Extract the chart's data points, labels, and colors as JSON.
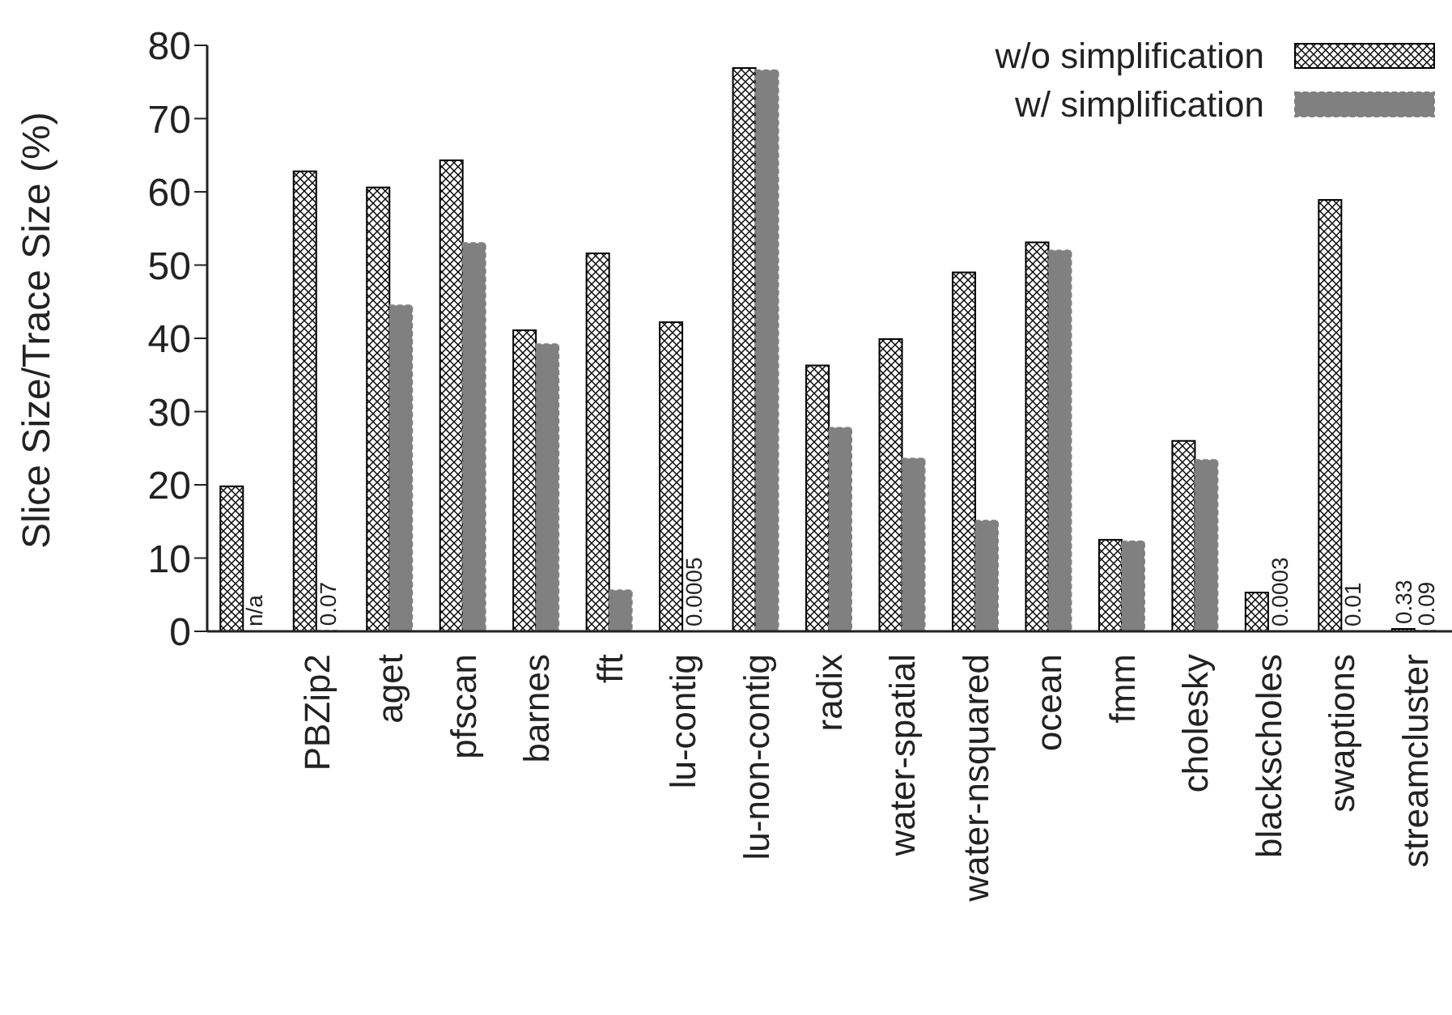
{
  "chart_data": {
    "type": "bar",
    "ylabel": "Slice Size/Trace Size (%)",
    "categories": [
      null,
      "PBZip2",
      "aget",
      "pfscan",
      "barnes",
      "fft",
      "lu-contig",
      "lu-non-contig",
      "radix",
      "water-spatial",
      "water-nsquared",
      "ocean",
      "fmm",
      "cholesky",
      "blackscholes",
      "swaptions",
      "streamcluster"
    ],
    "series": [
      {
        "name": "w/o simplification",
        "color": "#000000",
        "values": [
          19.8,
          62.8,
          60.6,
          64.3,
          41.1,
          51.6,
          42.2,
          76.9,
          36.3,
          39.9,
          49.0,
          53.1,
          12.5,
          26.0,
          5.3,
          58.9,
          0.33
        ],
        "value_labels": [
          null,
          null,
          null,
          null,
          null,
          null,
          null,
          null,
          null,
          null,
          null,
          null,
          null,
          null,
          null,
          null,
          "0.33"
        ]
      },
      {
        "name": "w/ simplification",
        "color": "#808080",
        "values": [
          null,
          0.07,
          44.5,
          53.0,
          39.2,
          5.6,
          0.0005,
          76.6,
          27.8,
          23.6,
          15.1,
          52.0,
          12.3,
          23.4,
          0.0003,
          0.01,
          0.09
        ],
        "value_labels": [
          "n/a",
          "0.07",
          null,
          null,
          null,
          null,
          "0.0005",
          null,
          null,
          null,
          null,
          null,
          null,
          null,
          "0.0003",
          "0.01",
          "0.09"
        ]
      }
    ],
    "ylim": [
      0,
      80
    ],
    "yticks": [
      0,
      10,
      20,
      30,
      40,
      50,
      60,
      70,
      80
    ],
    "grid": false,
    "legend": "top right"
  }
}
